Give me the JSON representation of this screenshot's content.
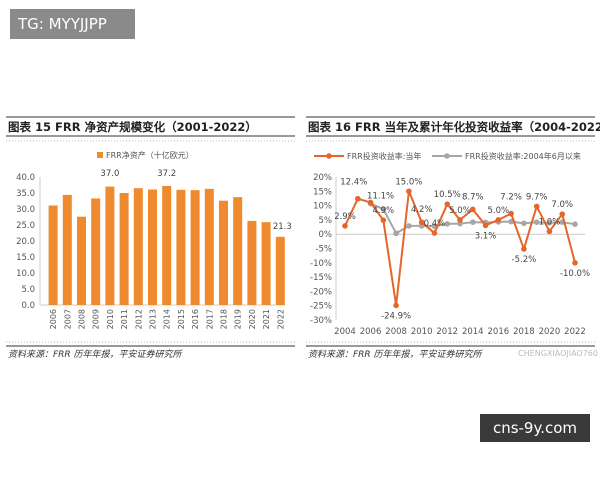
{
  "overlay_label": "TG: MYYJJPP",
  "watermark_site": "cns-9y.com",
  "chart_data": [
    {
      "type": "bar",
      "title": "图表 15   FRR 净资产规模变化（2001-2022）",
      "legend": "FRR净资产（十亿欧元）",
      "legend_position": "top",
      "categories": [
        "2006",
        "2007",
        "2008",
        "2009",
        "2010",
        "2011",
        "2012",
        "2013",
        "2014",
        "2015",
        "2016",
        "2017",
        "2018",
        "2019",
        "2020",
        "2021",
        "2022"
      ],
      "values": [
        31.1,
        34.4,
        27.6,
        33.3,
        37.0,
        35.0,
        36.5,
        36.1,
        37.2,
        36.0,
        35.9,
        36.3,
        32.6,
        33.7,
        26.3,
        25.9,
        21.3
      ],
      "data_labels": {
        "2010": "37.0",
        "2014": "37.2",
        "2022": "21.3"
      },
      "yticks": [
        "0.0",
        "5.0",
        "10.0",
        "15.0",
        "20.0",
        "25.0",
        "30.0",
        "35.0",
        "40.0"
      ],
      "ylim": [
        0,
        40
      ],
      "color": "#F08A2E",
      "source": "资料来源：FRR 历年年报，平安证券研究所"
    },
    {
      "type": "line",
      "title": "图表 16   FRR 当年及累计年化投资收益率（2004-2022）",
      "legend_position": "top",
      "x": [
        2004,
        2005,
        2006,
        2007,
        2008,
        2009,
        2010,
        2011,
        2012,
        2013,
        2014,
        2015,
        2016,
        2017,
        2018,
        2019,
        2020,
        2021,
        2022
      ],
      "series": [
        {
          "name": "FRR投资收益率:当年",
          "color": "#E5662A",
          "values": [
            2.9,
            12.4,
            11.1,
            4.9,
            -24.9,
            15.0,
            4.2,
            0.4,
            10.5,
            5.0,
            8.7,
            3.1,
            5.0,
            7.2,
            -5.2,
            9.7,
            1.0,
            7.0,
            -10.0
          ],
          "labels": [
            "2.9%",
            "12.4%",
            "11.1%",
            "4.9%",
            "-24.9%",
            "15.0%",
            "4.2%",
            "0.4%",
            "10.5%",
            "5.0%",
            "8.7%",
            "3.1%",
            "5.0%",
            "7.2%",
            "-5.2%",
            "9.7%",
            "1.0%",
            "7.0%",
            "-10.0%"
          ]
        },
        {
          "name": "FRR投资收益率:2004年6月以来",
          "color": "#A6A6A6",
          "values": [
            null,
            null,
            10.7,
            8.8,
            0.3,
            2.9,
            2.9,
            2.8,
            3.6,
            3.7,
            4.2,
            4.1,
            4.3,
            4.4,
            3.8,
            4.2,
            4.0,
            4.2,
            3.5
          ]
        }
      ],
      "xticks": [
        "2004",
        "2006",
        "2008",
        "2010",
        "2012",
        "2014",
        "2016",
        "2018",
        "2020",
        "2022"
      ],
      "yticks": [
        "-30%",
        "-25%",
        "-20%",
        "-15%",
        "-10%",
        "-5%",
        "0%",
        "5%",
        "10%",
        "15%",
        "20%"
      ],
      "ylim": [
        -30,
        20
      ],
      "source": "资料来源：FRR 历年年报，平安证券研究所",
      "watermark": "CHENGXIAOJIAO760"
    }
  ]
}
